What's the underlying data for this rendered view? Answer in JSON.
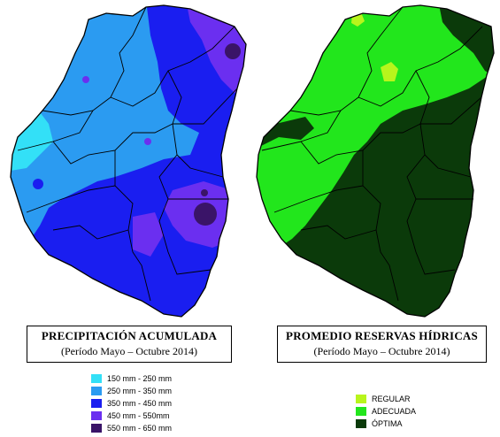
{
  "left_map": {
    "title": "PRECIPITACIÓN ACUMULADA",
    "subtitle": "(Período Mayo – Octubre 2014)",
    "legend": [
      {
        "label": "150 mm - 250 mm",
        "color": "#33e0f7"
      },
      {
        "label": "250 mm - 350 mm",
        "color": "#2b9bf1"
      },
      {
        "label": "350 mm - 450 mm",
        "color": "#1a1ef0"
      },
      {
        "label": "450 mm - 550mm",
        "color": "#6b2ff0"
      },
      {
        "label": "550 mm - 650 mm",
        "color": "#3a1468"
      }
    ]
  },
  "right_map": {
    "title": "PROMEDIO RESERVAS HÍDRICAS",
    "subtitle": "(Período Mayo – Octubre 2014)",
    "legend": [
      {
        "label": "REGULAR",
        "color": "#b8f51c"
      },
      {
        "label": "ADECUADA",
        "color": "#22e61c"
      },
      {
        "label": "ÓPTIMA",
        "color": "#0b3a0a"
      }
    ]
  }
}
